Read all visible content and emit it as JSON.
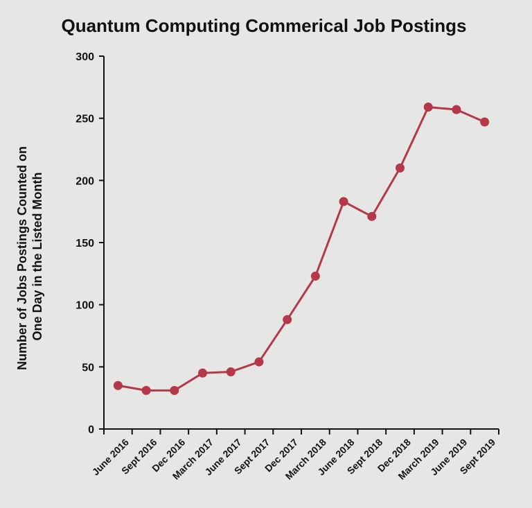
{
  "colors": {
    "background": "#e6e6e4",
    "series": "#b5384a",
    "axis": "#111111"
  },
  "chart_data": {
    "type": "line",
    "title": "Quantum Computing Commerical Job Postings",
    "xlabel": "",
    "ylabel_lines": [
      "Number of Jobs Postings Counted on",
      "One Day in the Listed Month"
    ],
    "categories": [
      "June 2016",
      "Sept 2016",
      "Dec 2016",
      "March 2017",
      "June 2017",
      "Sept 2017",
      "Dec 2017",
      "March 2018",
      "June 2018",
      "Sept 2018",
      "Dec 2018",
      "March 2019",
      "June 2019",
      "Sept 2019"
    ],
    "values": [
      35,
      31,
      31,
      45,
      46,
      54,
      88,
      123,
      183,
      171,
      210,
      259,
      257,
      247
    ],
    "ylim": [
      0,
      300
    ],
    "yticks": [
      0,
      50,
      100,
      150,
      200,
      250,
      300
    ],
    "grid": false,
    "legend": "none"
  }
}
